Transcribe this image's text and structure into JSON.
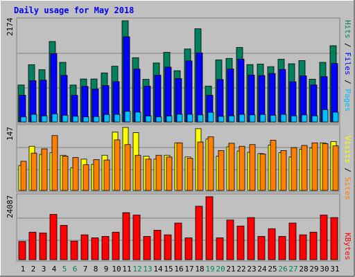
{
  "title": "Daily usage for May 2018",
  "colors": {
    "background": "#c0c0c0",
    "title": "#0000ff",
    "hits": "#00805c",
    "files": "#0000ff",
    "pages": "#00c0ff",
    "visits": "#ffff00",
    "sites": "#ff8000",
    "kbytes": "#ff0000",
    "weekend_label": "#00805c",
    "weekday_label": "#000000"
  },
  "chart_data": [
    {
      "type": "bar",
      "panel": "hits_files_pages",
      "ymax_label": "2174",
      "ylim": [
        0,
        2174
      ],
      "side_label": [
        "Pages",
        "Files",
        "Hits"
      ],
      "categories": [
        "1",
        "2",
        "3",
        "4",
        "5",
        "6",
        "7",
        "8",
        "9",
        "10",
        "11",
        "12",
        "13",
        "14",
        "15",
        "16",
        "17",
        "18",
        "19",
        "20",
        "21",
        "22",
        "23",
        "24",
        "25",
        "26",
        "27",
        "28",
        "29",
        "30",
        "31"
      ],
      "weekend_days": [
        "5",
        "6",
        "12",
        "13",
        "19",
        "20",
        "26",
        "27"
      ],
      "series": [
        {
          "name": "Hits",
          "values": [
            793,
            1230,
            1122,
            1728,
            1280,
            792,
            922,
            922,
            1053,
            1197,
            2174,
            1380,
            915,
            1267,
            1495,
            1100,
            1567,
            2002,
            770,
            1332,
            1365,
            1600,
            1233,
            1243,
            1188,
            1346,
            1250,
            1318,
            918,
            1280,
            1638
          ]
        },
        {
          "name": "Files",
          "values": [
            573,
            886,
            898,
            1468,
            1000,
            572,
            762,
            707,
            780,
            865,
            1830,
            1135,
            770,
            1003,
            1177,
            932,
            1312,
            1483,
            573,
            911,
            1139,
            1350,
            1008,
            996,
            1040,
            1128,
            862,
            989,
            794,
            972,
            1256
          ]
        },
        {
          "name": "Pages",
          "values": [
            108,
            162,
            130,
            173,
            141,
            121,
            108,
            115,
            159,
            162,
            227,
            209,
            126,
            108,
            125,
            165,
            162,
            151,
            205,
            119,
            130,
            162,
            151,
            159,
            141,
            162,
            130,
            151,
            130,
            263,
            209
          ]
        }
      ]
    },
    {
      "type": "bar",
      "panel": "visits_sites",
      "ymax_label": "147",
      "ylim": [
        0,
        147
      ],
      "side_label": [
        "Sites",
        "Visits"
      ],
      "series": [
        {
          "name": "Visits",
          "values": [
            58,
            103,
            84,
            88,
            82,
            53,
            73,
            61,
            82,
            136,
            147,
            135,
            80,
            73,
            82,
            111,
            78,
            144,
            120,
            80,
            102,
            92,
            89,
            86,
            106,
            88,
            78,
            96,
            99,
            111,
            114
          ]
        },
        {
          "name": "Sites",
          "values": [
            68,
            87,
            97,
            128,
            80,
            77,
            60,
            72,
            71,
            118,
            107,
            82,
            73,
            82,
            78,
            111,
            75,
            113,
            125,
            93,
            110,
            103,
            107,
            85,
            117,
            93,
            100,
            105,
            111,
            109,
            104
          ]
        }
      ]
    },
    {
      "type": "bar",
      "panel": "kbytes",
      "ymax_label": "24087",
      "ylim": [
        0,
        24087
      ],
      "side_label": [
        "KBytes"
      ],
      "series": [
        {
          "name": "KBytes",
          "values": [
            6948,
            10526,
            10237,
            17307,
            13151,
            7092,
            9500,
            8346,
            8912,
            10526,
            17980,
            17052,
            8912,
            11275,
            9500,
            14011,
            8346,
            20430,
            24087,
            8346,
            15161,
            12883,
            16101,
            8912,
            11847,
            8912,
            14011,
            9500,
            10526,
            17052,
            16101
          ]
        }
      ]
    }
  ]
}
